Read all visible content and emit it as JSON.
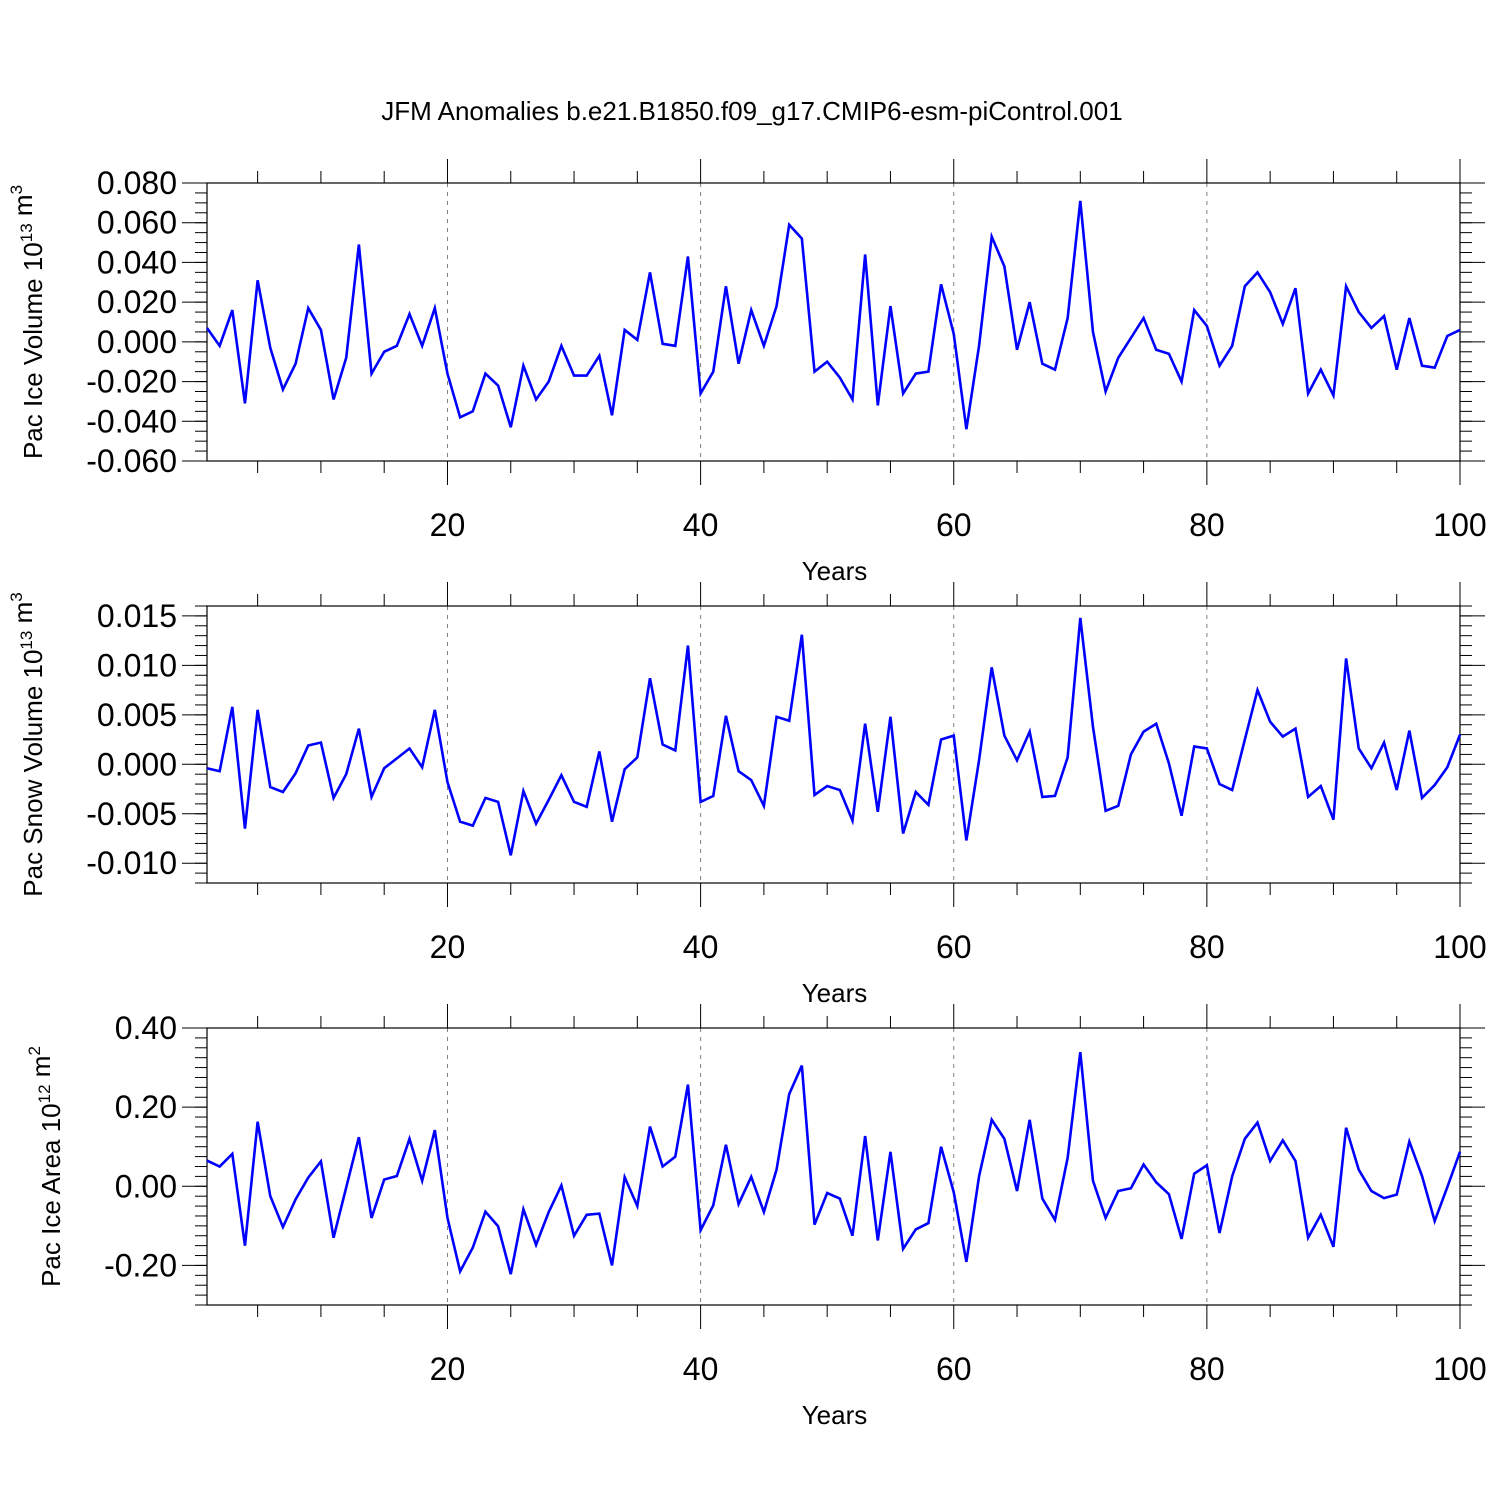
{
  "title": "JFM Anomalies b.e21.B1850.f09_g17.CMIP6-esm-piControl.001",
  "colors": {
    "line": "#0000ff",
    "axis": "#000000",
    "gridline": "#808080"
  },
  "chart_data": [
    {
      "type": "line",
      "ylabel_main": "Pac Ice Volume 10",
      "ylabel_exp": "13",
      "ylabel_unit": " m",
      "ylabel_unit_exp": "3",
      "xlabel": "Years",
      "xlim": [
        1,
        100
      ],
      "ylim": [
        -0.06,
        0.08
      ],
      "yticks": [
        -0.06,
        -0.04,
        -0.02,
        0.0,
        0.02,
        0.04,
        0.06,
        0.08
      ],
      "ytick_labels": [
        "-0.060",
        "-0.040",
        "-0.020",
        "0.000",
        "0.020",
        "0.040",
        "0.060",
        "0.080"
      ],
      "xticks": [
        20,
        40,
        60,
        80,
        100
      ],
      "xtick_labels": [
        "20",
        "40",
        "60",
        "80",
        "100"
      ],
      "grid_x": [
        20,
        40,
        60,
        80
      ],
      "series": [
        {
          "name": "Pac Ice Volume",
          "x_start": 1,
          "values": [
            0.007,
            -0.002,
            0.016,
            -0.031,
            0.031,
            -0.003,
            -0.024,
            -0.011,
            0.017,
            0.006,
            -0.029,
            -0.008,
            0.049,
            -0.016,
            -0.005,
            -0.002,
            0.014,
            -0.002,
            0.017,
            -0.016,
            -0.038,
            -0.035,
            -0.016,
            -0.022,
            -0.043,
            -0.012,
            -0.029,
            -0.02,
            -0.002,
            -0.017,
            -0.017,
            -0.007,
            -0.037,
            0.006,
            0.001,
            0.035,
            -0.001,
            -0.002,
            0.043,
            -0.026,
            -0.015,
            0.028,
            -0.011,
            0.016,
            -0.002,
            0.018,
            0.059,
            0.052,
            -0.015,
            -0.01,
            -0.018,
            -0.029,
            0.044,
            -0.032,
            0.018,
            -0.026,
            -0.016,
            -0.015,
            0.029,
            0.004,
            -0.044,
            -0.002,
            0.053,
            0.038,
            -0.004,
            0.02,
            -0.011,
            -0.014,
            0.012,
            0.071,
            0.005,
            -0.025,
            -0.008,
            0.002,
            0.012,
            -0.004,
            -0.006,
            -0.02,
            0.016,
            0.008,
            -0.012,
            -0.002,
            0.028,
            0.035,
            0.025,
            0.009,
            0.027,
            -0.026,
            -0.014,
            -0.027,
            0.028,
            0.015,
            0.007,
            0.013,
            -0.014,
            0.012,
            -0.012,
            -0.013,
            0.003,
            0.006
          ]
        }
      ]
    },
    {
      "type": "line",
      "ylabel_main": "Pac Snow Volume 10",
      "ylabel_exp": "13",
      "ylabel_unit": " m",
      "ylabel_unit_exp": "3",
      "xlabel": "Years",
      "xlim": [
        1,
        100
      ],
      "ylim": [
        -0.012,
        0.016
      ],
      "yticks": [
        -0.01,
        -0.005,
        0.0,
        0.005,
        0.01,
        0.015
      ],
      "ytick_labels": [
        "-0.010",
        "-0.005",
        "0.000",
        "0.005",
        "0.010",
        "0.015"
      ],
      "xticks": [
        20,
        40,
        60,
        80,
        100
      ],
      "xtick_labels": [
        "20",
        "40",
        "60",
        "80",
        "100"
      ],
      "grid_x": [
        20,
        40,
        60,
        80
      ],
      "series": [
        {
          "name": "Pac Snow Volume",
          "x_start": 1,
          "values": [
            -0.0004,
            -0.0007,
            0.0058,
            -0.0065,
            0.0055,
            -0.0023,
            -0.0028,
            -0.0009,
            0.0019,
            0.0022,
            -0.0034,
            -0.001,
            0.0036,
            -0.0033,
            -0.0004,
            0.0006,
            0.0016,
            -0.0003,
            0.0055,
            -0.0018,
            -0.0058,
            -0.0062,
            -0.0034,
            -0.0038,
            -0.0092,
            -0.0027,
            -0.006,
            -0.0036,
            -0.0011,
            -0.0038,
            -0.0043,
            0.0013,
            -0.0058,
            -0.0005,
            0.0007,
            0.0087,
            0.002,
            0.0014,
            0.012,
            -0.0038,
            -0.0032,
            0.0049,
            -0.0007,
            -0.0016,
            -0.0042,
            0.0048,
            0.0044,
            0.0131,
            -0.0031,
            -0.0022,
            -0.0026,
            -0.0057,
            0.0041,
            -0.0048,
            0.0048,
            -0.007,
            -0.0028,
            -0.0041,
            0.0025,
            0.0029,
            -0.0077,
            0.0004,
            0.0098,
            0.0029,
            0.0004,
            0.0033,
            -0.0033,
            -0.0032,
            0.0007,
            0.0148,
            0.0038,
            -0.0047,
            -0.0042,
            0.001,
            0.0033,
            0.0041,
            0.0001,
            -0.0052,
            0.0018,
            0.0016,
            -0.002,
            -0.0026,
            0.0025,
            0.0075,
            0.0043,
            0.0028,
            0.0036,
            -0.0033,
            -0.0022,
            -0.0056,
            0.0107,
            0.0016,
            -0.0004,
            0.0022,
            -0.0026,
            0.0034,
            -0.0034,
            -0.0021,
            -0.0003,
            0.003
          ]
        }
      ]
    },
    {
      "type": "line",
      "ylabel_main": "Pac Ice Area 10",
      "ylabel_exp": "12",
      "ylabel_unit": " m",
      "ylabel_unit_exp": "2",
      "xlabel": "Years",
      "xlim": [
        1,
        100
      ],
      "ylim": [
        -0.3,
        0.4
      ],
      "yticks": [
        -0.2,
        0.0,
        0.2,
        0.4
      ],
      "ytick_labels": [
        "-0.20",
        "0.00",
        "0.20",
        "0.40"
      ],
      "xticks": [
        20,
        40,
        60,
        80,
        100
      ],
      "xtick_labels": [
        "20",
        "40",
        "60",
        "80",
        "100"
      ],
      "grid_x": [
        20,
        40,
        60,
        80
      ],
      "series": [
        {
          "name": "Pac Ice Area",
          "x_start": 1,
          "values": [
            0.065,
            0.05,
            0.082,
            -0.15,
            0.163,
            -0.025,
            -0.103,
            -0.033,
            0.022,
            0.063,
            -0.13,
            -0.003,
            0.124,
            -0.08,
            0.017,
            0.026,
            0.12,
            0.014,
            0.142,
            -0.08,
            -0.215,
            -0.155,
            -0.064,
            -0.101,
            -0.222,
            -0.058,
            -0.148,
            -0.065,
            0.002,
            -0.125,
            -0.072,
            -0.069,
            -0.2,
            0.023,
            -0.05,
            0.151,
            0.05,
            0.075,
            0.257,
            -0.111,
            -0.048,
            0.105,
            -0.045,
            0.024,
            -0.065,
            0.042,
            0.233,
            0.305,
            -0.097,
            -0.017,
            -0.031,
            -0.125,
            0.127,
            -0.137,
            0.087,
            -0.158,
            -0.109,
            -0.093,
            0.1,
            -0.015,
            -0.191,
            0.025,
            0.168,
            0.12,
            -0.012,
            0.168,
            -0.031,
            -0.085,
            0.072,
            0.339,
            0.014,
            -0.08,
            -0.012,
            -0.005,
            0.055,
            0.01,
            -0.02,
            -0.133,
            0.032,
            0.053,
            -0.118,
            0.025,
            0.12,
            0.161,
            0.064,
            0.116,
            0.064,
            -0.13,
            -0.072,
            -0.153,
            0.148,
            0.042,
            -0.012,
            -0.03,
            -0.021,
            0.113,
            0.026,
            -0.088,
            -0.002,
            0.087
          ]
        }
      ]
    }
  ]
}
